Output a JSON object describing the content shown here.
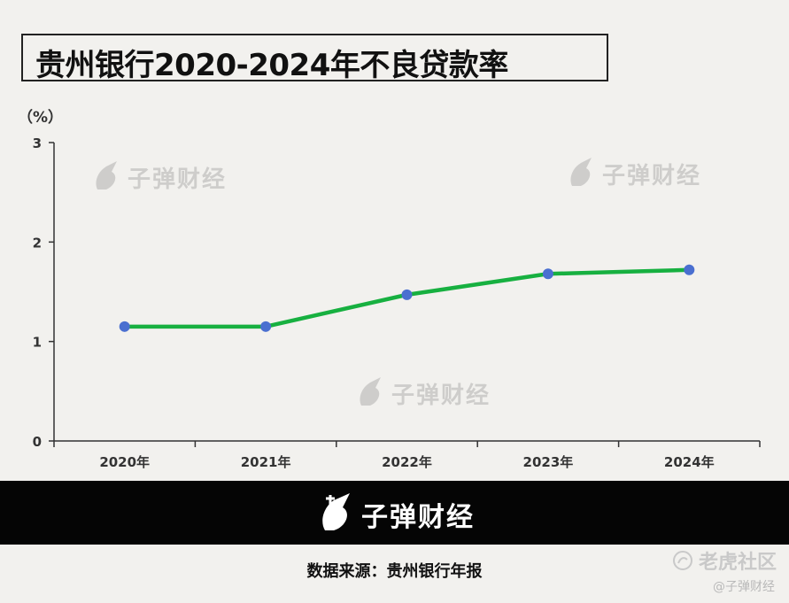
{
  "title": "贵州银行2020-2024年不良贷款率",
  "unit_label": "（%）",
  "watermark_text": "子弹财经",
  "band_text": "子弹财经",
  "source": "数据来源：贵州银行年报",
  "corner": {
    "platform": "老虎社区",
    "handle": "@子弹财经"
  },
  "colors": {
    "line": "#17b040",
    "marker": "#4a6fd0",
    "axis": "#333333",
    "band": "#050505"
  },
  "chart_data": {
    "type": "line",
    "title": "贵州银行2020-2024年不良贷款率",
    "xlabel": "",
    "ylabel": "（%）",
    "categories": [
      "2020年",
      "2021年",
      "2022年",
      "2023年",
      "2024年"
    ],
    "values": [
      1.15,
      1.15,
      1.47,
      1.68,
      1.72
    ],
    "ylim": [
      0,
      3
    ],
    "yticks": [
      "0",
      "1",
      "2",
      "3"
    ],
    "grid": false,
    "legend": "none"
  }
}
